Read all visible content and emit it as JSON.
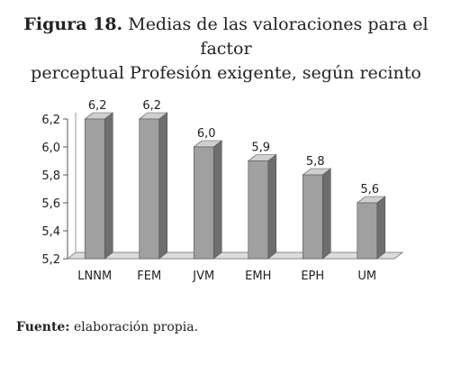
{
  "caption": {
    "figure_label": "Figura 18.",
    "title_rest": "Medias de las valoraciones para el factor",
    "title_line2": "perceptual Profesión exigente, según recinto"
  },
  "source": {
    "label": "Fuente:",
    "text": "elaboración propia."
  },
  "chart_data": {
    "type": "bar",
    "categories": [
      "LNNM",
      "FEM",
      "JVM",
      "EMH",
      "EPH",
      "UM"
    ],
    "values": [
      6.2,
      6.2,
      6.0,
      5.9,
      5.8,
      5.6
    ],
    "data_labels": [
      "6,2",
      "6,2",
      "6,0",
      "5,9",
      "5,8",
      "5,6"
    ],
    "ylim": [
      5.2,
      6.2
    ],
    "yticks": [
      5.2,
      5.4,
      5.6,
      5.8,
      6.0,
      6.2
    ],
    "ytick_labels": [
      "5,2",
      "5,4",
      "5,6",
      "5,8",
      "6,0",
      "6,2"
    ],
    "grid": false,
    "style": "3d",
    "colors": {
      "bar_front": "#a0a0a0",
      "bar_side": "#6e6e6e",
      "bar_top": "#cfcfcf",
      "floor": "#dcdcdc"
    }
  }
}
